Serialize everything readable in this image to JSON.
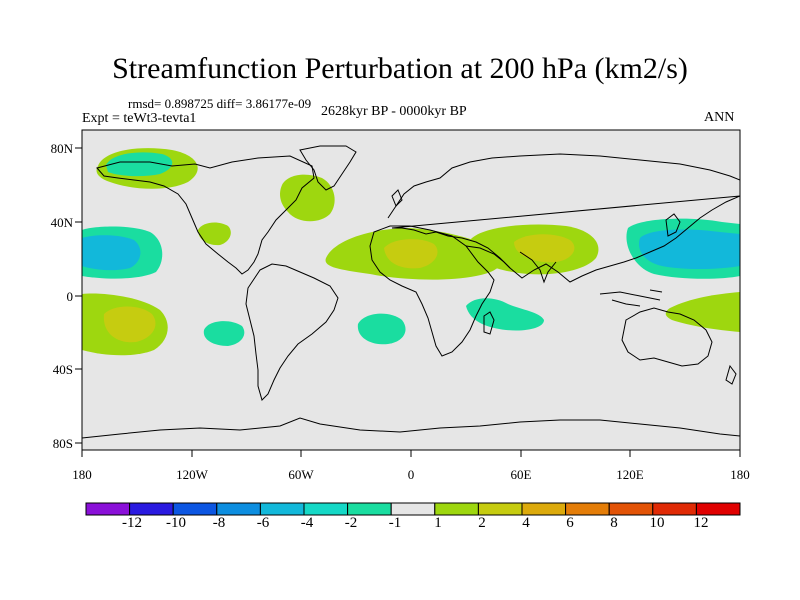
{
  "title": "Streamfunction Perturbation at 200 hPa (km2/s)",
  "stats": {
    "rmsd_label": "rmsd=",
    "rmsd": "0.898725",
    "diff_label": "diff=",
    "diff": "3.86177e-09"
  },
  "experiment": "Expt = teWt3-tevta1",
  "period": "2628kyr BP - 0000kyr BP",
  "season": "ANN",
  "map": {
    "lon_ticks": [
      "180",
      "120W",
      "60W",
      "0",
      "60E",
      "120E",
      "180"
    ],
    "lat_ticks": [
      "80N",
      "40N",
      "0",
      "40S",
      "80S"
    ],
    "background_color": "#e6e6e6"
  },
  "colorbar": {
    "labels": [
      "-12",
      "-10",
      "-8",
      "-6",
      "-4",
      "-2",
      "-1",
      "1",
      "2",
      "4",
      "6",
      "8",
      "10",
      "12"
    ],
    "colors": [
      "#8a10d8",
      "#2a1ae0",
      "#0c56e2",
      "#0d8ee0",
      "#12b8da",
      "#15d8c6",
      "#1adda0",
      "#e6e6e6",
      "#9ed70f",
      "#c6cc10",
      "#dcaa0c",
      "#e47d08",
      "#e25306",
      "#e02a05",
      "#e00000"
    ]
  },
  "anomalies": [
    {
      "region": "north-atlantic-subpolar",
      "level": "1"
    },
    {
      "region": "north-pacific-high-latitude",
      "level": "-1"
    },
    {
      "region": "north-america-east",
      "level": "1"
    },
    {
      "region": "subtropical-pacific-northeast",
      "level": "1"
    },
    {
      "region": "pacific-dateline-north",
      "level": "-2"
    },
    {
      "region": "pacific-dateline-north-core",
      "level": "-4"
    },
    {
      "region": "africa-north",
      "level": "2"
    },
    {
      "region": "africa-north-core",
      "level": "4"
    },
    {
      "region": "south-asia",
      "level": "2"
    },
    {
      "region": "south-asia-core",
      "level": "4"
    },
    {
      "region": "west-pacific-north",
      "level": "-2"
    },
    {
      "region": "west-pacific-north-core",
      "level": "-4"
    },
    {
      "region": "pacific-dateline-south",
      "level": "2"
    },
    {
      "region": "pacific-dateline-south-core",
      "level": "4"
    },
    {
      "region": "east-pacific-south",
      "level": "-1"
    },
    {
      "region": "south-atlantic",
      "level": "-1"
    },
    {
      "region": "east-africa-south",
      "level": "-1"
    },
    {
      "region": "south-pacific-west",
      "level": "1"
    }
  ]
}
